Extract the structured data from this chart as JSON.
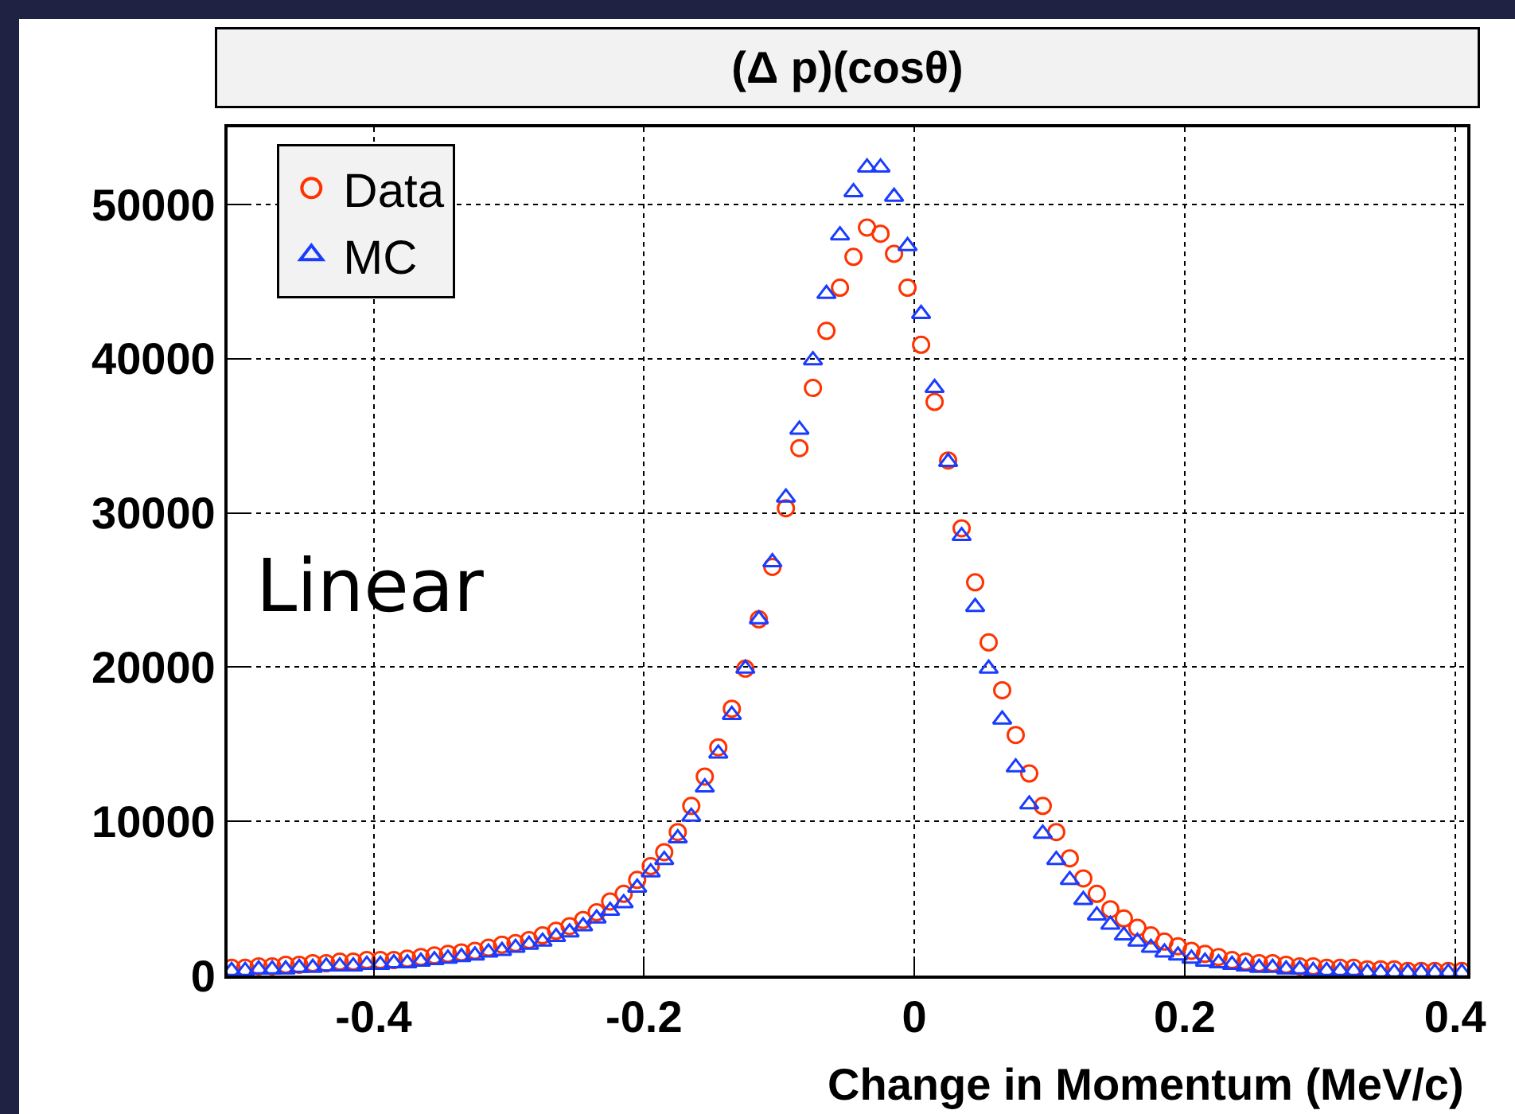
{
  "chart_data": {
    "type": "scatter",
    "title": "(Δ p)(cosθ)",
    "xlabel": "Change in Momentum (MeV/c)",
    "annotations": [
      "Linear"
    ],
    "x": [
      -0.505,
      -0.495,
      -0.485,
      -0.475,
      -0.465,
      -0.455,
      -0.445,
      -0.435,
      -0.425,
      -0.415,
      -0.405,
      -0.395,
      -0.385,
      -0.375,
      -0.365,
      -0.355,
      -0.345,
      -0.335,
      -0.325,
      -0.315,
      -0.305,
      -0.295,
      -0.285,
      -0.275,
      -0.265,
      -0.255,
      -0.245,
      -0.235,
      -0.225,
      -0.215,
      -0.205,
      -0.195,
      -0.185,
      -0.175,
      -0.165,
      -0.155,
      -0.145,
      -0.135,
      -0.125,
      -0.115,
      -0.105,
      -0.095,
      -0.085,
      -0.075,
      -0.065,
      -0.055,
      -0.045,
      -0.035,
      -0.025,
      -0.015,
      -0.005,
      0.005,
      0.015,
      0.025,
      0.035,
      0.045,
      0.055,
      0.065,
      0.075,
      0.085,
      0.095,
      0.105,
      0.115,
      0.125,
      0.135,
      0.145,
      0.155,
      0.165,
      0.175,
      0.185,
      0.195,
      0.205,
      0.215,
      0.225,
      0.235,
      0.245,
      0.255,
      0.265,
      0.275,
      0.285,
      0.295,
      0.305,
      0.315,
      0.325,
      0.335,
      0.345,
      0.355,
      0.365,
      0.375,
      0.385,
      0.395,
      0.405
    ],
    "series": [
      {
        "name": "Data",
        "color": "#ff3300",
        "marker": "circle",
        "values": [
          500,
          500,
          600,
          600,
          700,
          700,
          800,
          800,
          900,
          900,
          1000,
          1000,
          1000,
          1100,
          1200,
          1300,
          1400,
          1500,
          1600,
          1800,
          2000,
          2100,
          2300,
          2600,
          2900,
          3200,
          3600,
          4100,
          4800,
          5300,
          6200,
          7100,
          8000,
          9300,
          11000,
          12900,
          14800,
          17300,
          19900,
          23100,
          26500,
          30300,
          34200,
          38100,
          41800,
          44600,
          46600,
          48500,
          48100,
          46800,
          44600,
          40900,
          37200,
          33400,
          29000,
          25500,
          21600,
          18500,
          15600,
          13100,
          11000,
          9300,
          7600,
          6300,
          5300,
          4300,
          3700,
          3100,
          2600,
          2200,
          1900,
          1600,
          1400,
          1200,
          1000,
          900,
          800,
          800,
          700,
          600,
          600,
          500,
          500,
          500,
          400,
          400,
          400,
          300,
          300,
          300,
          300,
          300
        ]
      },
      {
        "name": "MC",
        "color": "#1a3cff",
        "marker": "triangle",
        "values": [
          300,
          300,
          400,
          400,
          400,
          500,
          500,
          600,
          600,
          600,
          700,
          700,
          800,
          800,
          900,
          1000,
          1100,
          1200,
          1300,
          1500,
          1600,
          1800,
          2000,
          2200,
          2500,
          2800,
          3200,
          3700,
          4200,
          4700,
          5700,
          6700,
          7500,
          8900,
          10300,
          12200,
          14400,
          16900,
          19900,
          23100,
          26800,
          31000,
          35400,
          39900,
          44200,
          48000,
          50800,
          52400,
          52400,
          50500,
          47300,
          42900,
          38100,
          33300,
          28500,
          23900,
          19900,
          16600,
          13500,
          11100,
          9200,
          7500,
          6200,
          4900,
          3900,
          3300,
          2600,
          2200,
          1800,
          1500,
          1300,
          1100,
          900,
          800,
          700,
          600,
          500,
          500,
          400,
          400,
          300,
          300,
          300,
          300,
          200,
          200,
          200,
          200,
          200,
          200,
          200,
          200
        ]
      }
    ],
    "xlim": [
      -0.508,
      0.409
    ],
    "xticks": [
      -0.4,
      -0.2,
      0,
      0.2,
      0.4
    ],
    "ylim": [
      0,
      55000
    ],
    "yticks": [
      0,
      10000,
      20000,
      30000,
      40000,
      50000
    ],
    "grid": true,
    "legend": "top left"
  }
}
